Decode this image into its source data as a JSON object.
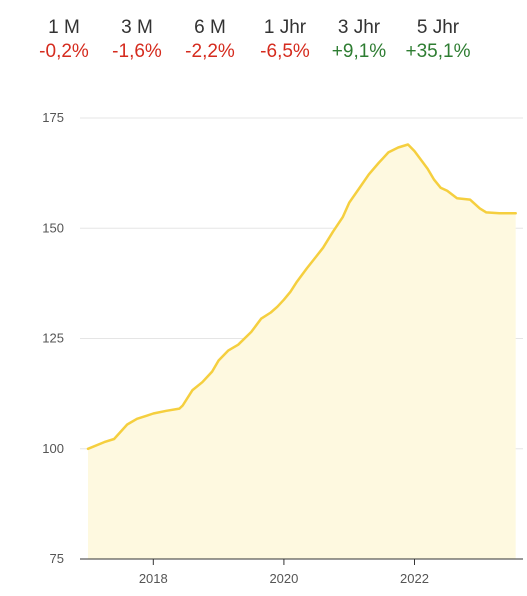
{
  "performance": [
    {
      "period": "1 M",
      "change": "-0,2%",
      "sign": "neg"
    },
    {
      "period": "3 M",
      "change": "-1,6%",
      "sign": "neg"
    },
    {
      "period": "6 M",
      "change": "-2,2%",
      "sign": "neg"
    },
    {
      "period": "1 Jhr",
      "change": "-6,5%",
      "sign": "neg"
    },
    {
      "period": "3 Jhr",
      "change": "+9,1%",
      "sign": "pos"
    },
    {
      "period": "5 Jhr",
      "change": "+35,1%",
      "sign": "pos"
    }
  ],
  "colors": {
    "line": "#f5cf3f",
    "area": "#fef9e0",
    "negative": "#d52b1e",
    "positive": "#2e7d32",
    "grid": "#e5e5e5"
  },
  "chart_data": {
    "type": "area",
    "title": "",
    "xlabel": "",
    "ylabel": "",
    "ylim": [
      75,
      175
    ],
    "yticks": [
      75,
      100,
      125,
      150,
      175
    ],
    "xlim": [
      2017.0,
      2023.6
    ],
    "xticks": [
      2018,
      2020,
      2022
    ],
    "grid": true,
    "series": [
      {
        "x": [
          2017.0,
          2017.25,
          2017.4,
          2017.6,
          2017.75,
          2017.9,
          2018.0,
          2018.2,
          2018.4,
          2018.45,
          2018.6,
          2018.75,
          2018.9,
          2019.0,
          2019.15,
          2019.3,
          2019.5,
          2019.65,
          2019.8,
          2019.9,
          2020.0,
          2020.1,
          2020.2,
          2020.35,
          2020.5,
          2020.6,
          2020.75,
          2020.9,
          2021.0,
          2021.15,
          2021.3,
          2021.45,
          2021.6,
          2021.75,
          2021.9,
          2022.0,
          2022.2,
          2022.3,
          2022.4,
          2022.5,
          2022.65,
          2022.85,
          2023.0,
          2023.1,
          2023.3,
          2023.45,
          2023.55
        ],
        "y": [
          100.0,
          101.5,
          102.2,
          105.5,
          106.8,
          107.5,
          108.0,
          108.6,
          109.1,
          109.8,
          113.3,
          115.1,
          117.5,
          120.0,
          122.3,
          123.6,
          126.5,
          129.5,
          130.9,
          132.2,
          133.8,
          135.6,
          137.9,
          140.9,
          143.7,
          145.6,
          149.2,
          152.5,
          155.8,
          159.0,
          162.2,
          164.8,
          167.2,
          168.3,
          169.0,
          167.5,
          163.5,
          161.0,
          159.2,
          158.5,
          156.8,
          156.5,
          154.5,
          153.6,
          153.4,
          153.4,
          153.4
        ]
      }
    ]
  }
}
